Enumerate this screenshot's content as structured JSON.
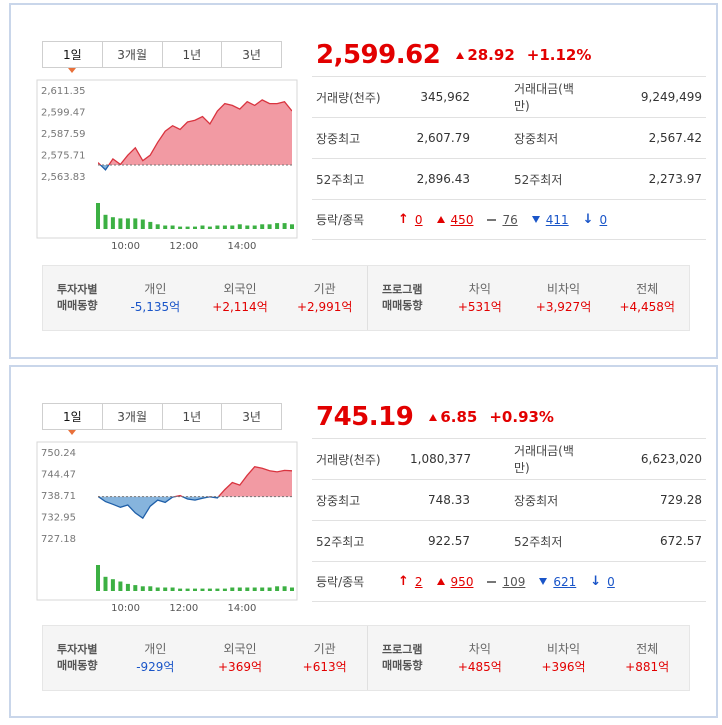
{
  "tabs": [
    "1일",
    "3개월",
    "1년",
    "3년"
  ],
  "labels": {
    "volume": "거래량(천주)",
    "amount": "거래대금(백만)",
    "high": "장중최고",
    "low": "장중최저",
    "high52": "52주최고",
    "low52": "52주최저",
    "breadth": "등락/종목",
    "investor_head_1": "투자자별",
    "investor_head_2": "매매동향",
    "program_head_1": "프로그램",
    "program_head_2": "매매동향",
    "individual": "개인",
    "foreign": "외국인",
    "institution": "기관",
    "arbitrage": "차익",
    "non_arbitrage": "비차익",
    "total": "전체"
  },
  "panels": [
    {
      "price": "2,599.62",
      "change": "28.92",
      "pct": "+1.12%",
      "volume": "345,962",
      "amount": "9,249,499",
      "high": "2,607.79",
      "low": "2,567.42",
      "high52": "2,896.43",
      "low52": "2,273.97",
      "breadth": {
        "upper": "0",
        "up": "450",
        "flat": "76",
        "down": "411",
        "lower": "0"
      },
      "investor": {
        "individual": "-5,135억",
        "foreign": "+2,114억",
        "institution": "+2,991억"
      },
      "program": {
        "arbitrage": "+531억",
        "non_arbitrage": "+3,927억",
        "total": "+4,458억"
      },
      "chart": {
        "yticks": [
          "2,611.35",
          "2,599.47",
          "2,587.59",
          "2,575.71",
          "2,563.83"
        ],
        "xticks": [
          "10:00",
          "12:00",
          "14:00"
        ]
      }
    },
    {
      "price": "745.19",
      "change": "6.85",
      "pct": "+0.93%",
      "volume": "1,080,377",
      "amount": "6,623,020",
      "high": "748.33",
      "low": "729.28",
      "high52": "922.57",
      "low52": "672.57",
      "breadth": {
        "upper": "2",
        "up": "950",
        "flat": "109",
        "down": "621",
        "lower": "0"
      },
      "investor": {
        "individual": "-929억",
        "foreign": "+369억",
        "institution": "+613억"
      },
      "program": {
        "arbitrage": "+485억",
        "non_arbitrage": "+396억",
        "total": "+881억"
      },
      "chart": {
        "yticks": [
          "750.24",
          "744.47",
          "738.71",
          "732.95",
          "727.18"
        ],
        "xticks": [
          "10:00",
          "12:00",
          "14:00"
        ]
      }
    }
  ],
  "chart_data": [
    {
      "type": "area",
      "title": "",
      "baseline": 2570.7,
      "ylim": [
        2562,
        2613
      ],
      "x": [
        "09:00",
        "09:15",
        "09:30",
        "09:45",
        "10:00",
        "10:15",
        "10:30",
        "10:45",
        "11:00",
        "11:15",
        "11:30",
        "11:45",
        "12:00",
        "12:15",
        "12:30",
        "12:45",
        "13:00",
        "13:15",
        "13:30",
        "13:45",
        "14:00",
        "14:15",
        "14:30",
        "14:45",
        "15:00",
        "15:15",
        "15:30"
      ],
      "values": [
        2572,
        2568,
        2574,
        2571,
        2576,
        2580,
        2573,
        2576,
        2583,
        2589,
        2592,
        2590,
        2594,
        2595,
        2597,
        2593,
        2600,
        2604,
        2603,
        2601,
        2605,
        2603,
        2606,
        2604,
        2604,
        2605,
        2600
      ],
      "volume": [
        22,
        12,
        10,
        9,
        9,
        9,
        8,
        6,
        4,
        3,
        3,
        2,
        2,
        2,
        3,
        2,
        3,
        3,
        3,
        4,
        3,
        3,
        4,
        4,
        5,
        5,
        4
      ]
    },
    {
      "type": "area",
      "title": "",
      "baseline": 738.34,
      "ylim": [
        726,
        751
      ],
      "x": [
        "09:00",
        "09:15",
        "09:30",
        "09:45",
        "10:00",
        "10:15",
        "10:30",
        "10:45",
        "11:00",
        "11:15",
        "11:30",
        "11:45",
        "12:00",
        "12:15",
        "12:30",
        "12:45",
        "13:00",
        "13:15",
        "13:30",
        "13:45",
        "14:00",
        "14:15",
        "14:30",
        "14:45",
        "15:00",
        "15:15",
        "15:30"
      ],
      "values": [
        738.4,
        737.0,
        736.3,
        735.5,
        736.1,
        734.0,
        732.6,
        735.8,
        737.4,
        736.8,
        738.2,
        738.6,
        737.7,
        737.4,
        737.9,
        738.3,
        738.0,
        740.2,
        742.1,
        741.4,
        744.0,
        746.3,
        745.9,
        745.2,
        744.9,
        745.3,
        745.2
      ],
      "volume": [
        22,
        12,
        10,
        8,
        6,
        5,
        4,
        4,
        3,
        3,
        3,
        2,
        2,
        2,
        2,
        2,
        2,
        2,
        3,
        3,
        3,
        3,
        3,
        3,
        4,
        4,
        3
      ]
    }
  ]
}
